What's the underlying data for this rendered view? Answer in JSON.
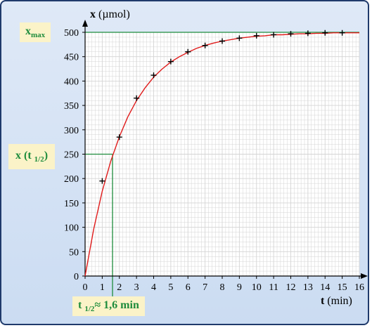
{
  "chart_data": {
    "type": "line",
    "xlabel_var": "t",
    "xlabel_unit": "(min)",
    "ylabel_var": "x",
    "ylabel_unit": "(µmol)",
    "xlim": [
      0,
      16
    ],
    "ylim": [
      0,
      500
    ],
    "xticks": [
      0,
      1,
      2,
      3,
      4,
      5,
      6,
      7,
      8,
      9,
      10,
      11,
      12,
      13,
      14,
      15,
      16
    ],
    "yticks": [
      0,
      50,
      100,
      150,
      200,
      250,
      300,
      350,
      400,
      450,
      500
    ],
    "grid": true,
    "series": [
      {
        "kind": "points",
        "x": [
          1,
          2,
          3,
          4,
          5,
          6,
          7,
          8,
          9,
          10,
          11,
          12,
          13,
          14,
          15
        ],
        "y": [
          195,
          285,
          365,
          412,
          440,
          460,
          473,
          482,
          488,
          493,
          495,
          497,
          498,
          499,
          499
        ]
      },
      {
        "kind": "fit-curve",
        "x": [
          0,
          0.5,
          1,
          1.5,
          2,
          2.5,
          3,
          3.5,
          4,
          4.5,
          5,
          5.5,
          6,
          6.5,
          7,
          7.5,
          8,
          8.5,
          9,
          9.5,
          10,
          10.5,
          11,
          11.5,
          12,
          12.5,
          13,
          13.5,
          14,
          14.5,
          15,
          15.5,
          16
        ],
        "y": [
          0,
          96,
          174,
          236,
          286,
          327,
          360,
          386,
          408,
          425,
          439,
          450,
          459,
          467,
          473,
          478,
          482,
          485,
          488,
          490,
          492,
          493,
          495,
          495,
          496,
          497,
          497,
          498,
          498,
          499,
          499,
          499,
          499
        ]
      }
    ],
    "reference_lines": {
      "xmax_y": 500,
      "half_y": 250,
      "half_x": 1.6
    },
    "annotations": {
      "xmax_main": "x",
      "xmax_sub": "max",
      "half_main": "x (t",
      "half_sub": "1/2",
      "half_close": ")",
      "thalf_main": "t",
      "thalf_sub": "1/2",
      "thalf_rest": "≈ 1,6 min"
    },
    "colors": {
      "curve": "#e01b1b",
      "reference": "#1e8c3c",
      "points": "#000000",
      "grid": "#d4d4d4",
      "annotation_bg": "#fbf3c8",
      "annotation_text": "#1e8c3c",
      "frame": "#1f3a6b"
    }
  }
}
